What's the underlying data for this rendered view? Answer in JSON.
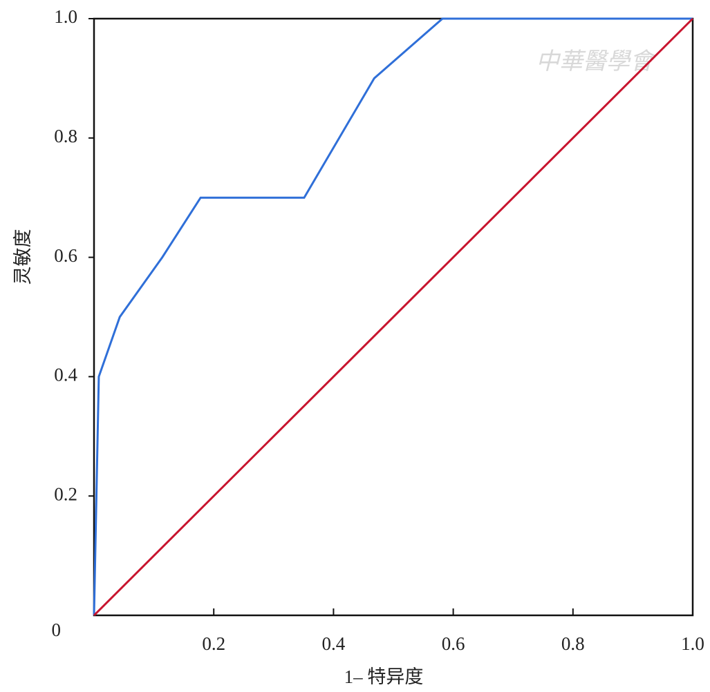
{
  "chart_data": {
    "type": "line",
    "x_label": "1– 特异度",
    "y_label": "灵敏度",
    "watermark": "中華醫學會",
    "xlim": [
      0,
      1
    ],
    "ylim": [
      0,
      1
    ],
    "xticks": [
      0.2,
      0.4,
      0.6,
      0.8,
      {
        "value": 1,
        "label": "1.0"
      }
    ],
    "yticks": [
      0,
      0.2,
      0.4,
      0.6,
      0.8,
      {
        "value": 1,
        "label": "1.0"
      }
    ],
    "series": [
      {
        "color": "#2f6fd8",
        "x": [
          0,
          0.008,
          0.043,
          0.114,
          0.178,
          0.351,
          0.468,
          0.582,
          1
        ],
        "values": [
          0,
          0.4,
          0.5,
          0.6,
          0.7,
          0.7,
          0.9,
          1,
          1
        ]
      },
      {
        "color": "#c8142e",
        "x": [
          0,
          1
        ],
        "values": [
          0,
          1
        ]
      }
    ]
  }
}
